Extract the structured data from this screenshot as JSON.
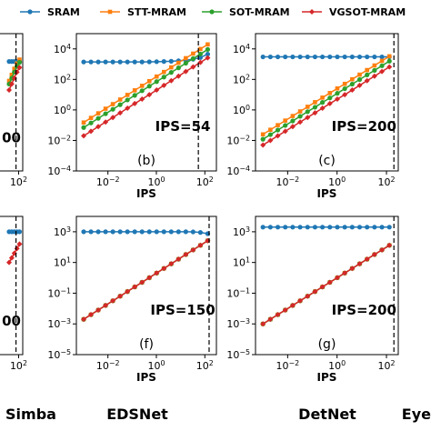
{
  "legend": {
    "position": "top",
    "items": [
      {
        "label": "SRAM",
        "color": "#1f77b4",
        "marker": "circle"
      },
      {
        "label": "STT-MRAM",
        "color": "#ff7f0e",
        "marker": "square"
      },
      {
        "label": "SOT-MRAM",
        "color": "#2ca02c",
        "marker": "circle"
      },
      {
        "label": "VGSOT-MRAM",
        "color": "#d62728",
        "marker": "diamond"
      }
    ]
  },
  "chart_data": [
    {
      "id": "a",
      "panel_label": "",
      "bottom_label": "Simba",
      "type": "line",
      "log_x": true,
      "log_y": true,
      "xlabel": "",
      "x_ticks": [
        "10^2"
      ],
      "y_ticks": [],
      "ips_label": "00",
      "ips_marker_x": 50,
      "xlim": [
        0.0005,
        300
      ],
      "ylim": [
        0.0001,
        100000
      ],
      "series": [
        {
          "name": "SRAM",
          "x": [
            8,
            16,
            32,
            64,
            128
          ],
          "y": [
            1500,
            1500,
            1500,
            1500,
            1550
          ]
        },
        {
          "name": "STT-MRAM",
          "x": [
            8,
            16,
            32,
            64,
            128
          ],
          "y": [
            80,
            200,
            500,
            1100,
            2000
          ]
        },
        {
          "name": "SOT-MRAM",
          "x": [
            8,
            16,
            32,
            64,
            128
          ],
          "y": [
            50,
            120,
            300,
            700,
            1300
          ]
        },
        {
          "name": "VGSOT-MRAM",
          "x": [
            8,
            16,
            32,
            64,
            128
          ],
          "y": [
            20,
            50,
            120,
            300,
            600
          ]
        }
      ]
    },
    {
      "id": "b",
      "panel_label": "(b)",
      "bottom_label": "",
      "type": "line",
      "log_x": true,
      "log_y": true,
      "xlabel": "IPS",
      "x_ticks": [
        "10^-2",
        "10^0",
        "10^2"
      ],
      "y_ticks": [
        "10^4",
        "10^2",
        "10^0",
        "10^-2",
        "10^-4"
      ],
      "ips_label": "IPS=54",
      "ips_marker_x": 54,
      "xlim": [
        0.0005,
        300
      ],
      "ylim": [
        0.0001,
        100000
      ],
      "series": [
        {
          "name": "SRAM",
          "x": [
            0.001,
            0.002,
            0.004,
            0.008,
            0.016,
            0.032,
            0.064,
            0.128,
            0.256,
            0.512,
            1.024,
            2.048,
            4.096,
            8.192,
            16.38,
            32.77,
            65.54,
            131.1
          ],
          "y": [
            1400,
            1400,
            1400,
            1400,
            1400,
            1400,
            1400,
            1400,
            1400,
            1420,
            1450,
            1500,
            1550,
            1650,
            1800,
            2100,
            2700,
            4500
          ]
        },
        {
          "name": "STT-MRAM",
          "x": [
            0.001,
            0.002,
            0.004,
            0.008,
            0.016,
            0.032,
            0.064,
            0.128,
            0.256,
            0.512,
            1.024,
            2.048,
            4.096,
            8.192,
            16.38,
            32.77,
            65.54,
            131.1
          ],
          "y": [
            0.15,
            0.3,
            0.6,
            1.2,
            2.4,
            4.8,
            9.6,
            19.2,
            38,
            77,
            154,
            307,
            614,
            1230,
            2460,
            4900,
            9800,
            19700
          ]
        },
        {
          "name": "SOT-MRAM",
          "x": [
            0.001,
            0.002,
            0.004,
            0.008,
            0.016,
            0.032,
            0.064,
            0.128,
            0.256,
            0.512,
            1.024,
            2.048,
            4.096,
            8.192,
            16.38,
            32.77,
            65.54,
            131.1
          ],
          "y": [
            0.07,
            0.14,
            0.28,
            0.56,
            1.1,
            2.2,
            4.5,
            9,
            18,
            36,
            72,
            143,
            287,
            573,
            1150,
            2300,
            4600,
            9200
          ]
        },
        {
          "name": "VGSOT-MRAM",
          "x": [
            0.001,
            0.002,
            0.004,
            0.008,
            0.016,
            0.032,
            0.064,
            0.128,
            0.256,
            0.512,
            1.024,
            2.048,
            4.096,
            8.192,
            16.38,
            32.77,
            65.54,
            131.1
          ],
          "y": [
            0.02,
            0.04,
            0.08,
            0.16,
            0.32,
            0.64,
            1.3,
            2.6,
            5.1,
            10,
            20,
            41,
            82,
            164,
            330,
            660,
            1300,
            2600
          ]
        }
      ]
    },
    {
      "id": "c",
      "panel_label": "(c)",
      "bottom_label": "",
      "type": "line",
      "log_x": true,
      "log_y": true,
      "xlabel": "IPS",
      "x_ticks": [
        "10^-2",
        "10^0",
        "10^2"
      ],
      "y_ticks": [
        "10^4",
        "10^2",
        "10^0",
        "10^-2",
        "10^-4"
      ],
      "ips_label": "IPS=200",
      "ips_marker_x": 200,
      "xlim": [
        0.0005,
        300
      ],
      "ylim": [
        0.0001,
        100000
      ],
      "series": [
        {
          "name": "SRAM",
          "x": [
            0.001,
            0.002,
            0.004,
            0.008,
            0.016,
            0.032,
            0.064,
            0.128,
            0.256,
            0.512,
            1.024,
            2.048,
            4.096,
            8.192,
            16.38,
            32.77,
            65.54,
            131.1
          ],
          "y": [
            3000,
            3000,
            3000,
            3000,
            3000,
            3000,
            3000,
            3000,
            3000,
            3000,
            3000,
            3000,
            3000,
            3000,
            3000,
            3000,
            3000,
            3000
          ]
        },
        {
          "name": "STT-MRAM",
          "x": [
            0.001,
            0.002,
            0.004,
            0.008,
            0.016,
            0.032,
            0.064,
            0.128,
            0.256,
            0.512,
            1.024,
            2.048,
            4.096,
            8.192,
            16.38,
            32.77,
            65.54,
            131.1
          ],
          "y": [
            0.025,
            0.05,
            0.1,
            0.2,
            0.4,
            0.8,
            1.6,
            3.2,
            6.4,
            12.8,
            25.6,
            51,
            102,
            205,
            410,
            820,
            1640,
            3280
          ]
        },
        {
          "name": "SOT-MRAM",
          "x": [
            0.001,
            0.002,
            0.004,
            0.008,
            0.016,
            0.032,
            0.064,
            0.128,
            0.256,
            0.512,
            1.024,
            2.048,
            4.096,
            8.192,
            16.38,
            32.77,
            65.54,
            131.1
          ],
          "y": [
            0.012,
            0.024,
            0.048,
            0.096,
            0.19,
            0.38,
            0.77,
            1.5,
            3.1,
            6.1,
            12.3,
            24.6,
            49,
            98,
            197,
            393,
            787,
            1570
          ]
        },
        {
          "name": "VGSOT-MRAM",
          "x": [
            0.001,
            0.002,
            0.004,
            0.008,
            0.016,
            0.032,
            0.064,
            0.128,
            0.256,
            0.512,
            1.024,
            2.048,
            4.096,
            8.192,
            16.38,
            32.77,
            65.54,
            131.1
          ],
          "y": [
            0.005,
            0.01,
            0.02,
            0.04,
            0.08,
            0.16,
            0.32,
            0.64,
            1.3,
            2.6,
            5.1,
            10,
            20,
            41,
            82,
            164,
            330,
            655
          ]
        }
      ]
    },
    {
      "id": "e",
      "panel_label": "",
      "bottom_label": "Simba",
      "type": "line",
      "log_x": true,
      "log_y": true,
      "xlabel": "",
      "x_ticks": [
        "10^2"
      ],
      "y_ticks": [],
      "ips_label": "00",
      "ips_marker_x": 50,
      "xlim": [
        0.0005,
        300
      ],
      "ylim": [
        1e-05,
        10000
      ],
      "series": [
        {
          "name": "SRAM",
          "x": [
            8,
            16,
            32,
            64,
            128
          ],
          "y": [
            1000,
            1000,
            1000,
            1000,
            1000
          ]
        },
        {
          "name": "VGSOT-MRAM",
          "x": [
            8,
            16,
            32,
            64,
            128
          ],
          "y": [
            10,
            20,
            40,
            80,
            160
          ]
        }
      ]
    },
    {
      "id": "f",
      "panel_label": "(f)",
      "bottom_label": "EDSNet",
      "type": "line",
      "log_x": true,
      "log_y": true,
      "xlabel": "IPS",
      "x_ticks": [
        "10^-2",
        "10^0",
        "10^2"
      ],
      "y_ticks": [
        "10^3",
        "10^1",
        "10^-1",
        "10^-3",
        "10^-5"
      ],
      "ips_label": "IPS=150",
      "ips_marker_x": 150,
      "xlim": [
        0.0005,
        300
      ],
      "ylim": [
        1e-05,
        10000
      ],
      "series": [
        {
          "name": "SRAM",
          "x": [
            0.001,
            0.002,
            0.004,
            0.008,
            0.016,
            0.032,
            0.064,
            0.128,
            0.256,
            0.512,
            1.024,
            2.048,
            4.096,
            8.192,
            16.38,
            32.77,
            65.54,
            131.1
          ],
          "y": [
            1000,
            1000,
            1000,
            1000,
            1000,
            1000,
            1000,
            1000,
            1000,
            1000,
            1000,
            1000,
            1000,
            1000,
            1000,
            980,
            900,
            750
          ]
        },
        {
          "name": "STT-MRAM",
          "x": [
            0.001,
            0.002,
            0.004,
            0.008,
            0.016,
            0.032,
            0.064,
            0.128,
            0.256,
            0.512,
            1.024,
            2.048,
            4.096,
            8.192,
            16.38,
            32.77,
            65.54,
            131.1
          ],
          "y": [
            0.002,
            0.004,
            0.008,
            0.016,
            0.032,
            0.064,
            0.128,
            0.256,
            0.51,
            1.02,
            2.05,
            4.1,
            8.2,
            16.4,
            33,
            66,
            131,
            262
          ]
        },
        {
          "name": "SOT-MRAM",
          "x": [
            0.001,
            0.002,
            0.004,
            0.008,
            0.016,
            0.032,
            0.064,
            0.128,
            0.256,
            0.512,
            1.024,
            2.048,
            4.096,
            8.192,
            16.38,
            32.77,
            65.54,
            131.1
          ],
          "y": [
            0.002,
            0.004,
            0.008,
            0.016,
            0.032,
            0.064,
            0.128,
            0.256,
            0.51,
            1.02,
            2.05,
            4.1,
            8.2,
            16.4,
            33,
            66,
            131,
            262
          ]
        },
        {
          "name": "VGSOT-MRAM",
          "x": [
            0.001,
            0.002,
            0.004,
            0.008,
            0.016,
            0.032,
            0.064,
            0.128,
            0.256,
            0.512,
            1.024,
            2.048,
            4.096,
            8.192,
            16.38,
            32.77,
            65.54,
            131.1
          ],
          "y": [
            0.002,
            0.004,
            0.008,
            0.016,
            0.032,
            0.064,
            0.128,
            0.256,
            0.51,
            1.02,
            2.05,
            4.1,
            8.2,
            16.4,
            33,
            66,
            131,
            262
          ]
        }
      ]
    },
    {
      "id": "g",
      "panel_label": "(g)",
      "bottom_label": "DetNet",
      "type": "line",
      "log_x": true,
      "log_y": true,
      "xlabel": "IPS",
      "x_ticks": [
        "10^-2",
        "10^0",
        "10^2"
      ],
      "y_ticks": [
        "10^3",
        "10^1",
        "10^-1",
        "10^-3",
        "10^-5"
      ],
      "ips_label": "IPS=200",
      "ips_marker_x": 200,
      "xlim": [
        0.0005,
        300
      ],
      "ylim": [
        1e-05,
        10000
      ],
      "series": [
        {
          "name": "SRAM",
          "x": [
            0.001,
            0.002,
            0.004,
            0.008,
            0.016,
            0.032,
            0.064,
            0.128,
            0.256,
            0.512,
            1.024,
            2.048,
            4.096,
            8.192,
            16.38,
            32.77,
            65.54,
            131.1
          ],
          "y": [
            2000,
            2000,
            2000,
            2000,
            2000,
            2000,
            2000,
            2000,
            2000,
            2000,
            2000,
            2000,
            2000,
            2000,
            2000,
            2000,
            2000,
            2000
          ]
        },
        {
          "name": "STT-MRAM",
          "x": [
            0.001,
            0.002,
            0.004,
            0.008,
            0.016,
            0.032,
            0.064,
            0.128,
            0.256,
            0.512,
            1.024,
            2.048,
            4.096,
            8.192,
            16.38,
            32.77,
            65.54,
            131.1
          ],
          "y": [
            0.001,
            0.002,
            0.004,
            0.008,
            0.016,
            0.032,
            0.064,
            0.128,
            0.256,
            0.512,
            1.02,
            2.05,
            4.1,
            8.2,
            16.4,
            33,
            66,
            131
          ]
        },
        {
          "name": "SOT-MRAM",
          "x": [
            0.001,
            0.002,
            0.004,
            0.008,
            0.016,
            0.032,
            0.064,
            0.128,
            0.256,
            0.512,
            1.024,
            2.048,
            4.096,
            8.192,
            16.38,
            32.77,
            65.54,
            131.1
          ],
          "y": [
            0.001,
            0.002,
            0.004,
            0.008,
            0.016,
            0.032,
            0.064,
            0.128,
            0.256,
            0.512,
            1.02,
            2.05,
            4.1,
            8.2,
            16.4,
            33,
            66,
            131
          ]
        },
        {
          "name": "VGSOT-MRAM",
          "x": [
            0.001,
            0.002,
            0.004,
            0.008,
            0.016,
            0.032,
            0.064,
            0.128,
            0.256,
            0.512,
            1.024,
            2.048,
            4.096,
            8.192,
            16.38,
            32.77,
            65.54,
            131.1
          ],
          "y": [
            0.001,
            0.002,
            0.004,
            0.008,
            0.016,
            0.032,
            0.064,
            0.128,
            0.256,
            0.512,
            1.02,
            2.05,
            4.1,
            8.2,
            16.4,
            33,
            66,
            131
          ]
        }
      ]
    }
  ],
  "edge_labels": {
    "right_bottom": "Eye"
  }
}
